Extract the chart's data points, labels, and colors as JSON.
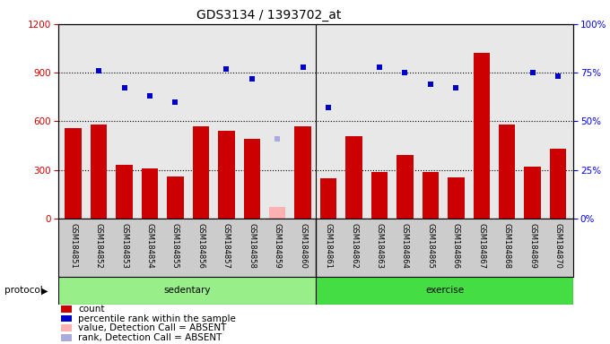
{
  "title": "GDS3134 / 1393702_at",
  "samples": [
    "GSM184851",
    "GSM184852",
    "GSM184853",
    "GSM184854",
    "GSM184855",
    "GSM184856",
    "GSM184857",
    "GSM184858",
    "GSM184859",
    "GSM184860",
    "GSM184861",
    "GSM184862",
    "GSM184863",
    "GSM184864",
    "GSM184865",
    "GSM184866",
    "GSM184867",
    "GSM184868",
    "GSM184869",
    "GSM184870"
  ],
  "count_values": [
    555,
    580,
    330,
    310,
    260,
    570,
    540,
    490,
    null,
    570,
    250,
    510,
    285,
    390,
    285,
    255,
    1020,
    580,
    320,
    430
  ],
  "absent_count_values": [
    null,
    null,
    null,
    null,
    null,
    null,
    null,
    null,
    70,
    null,
    null,
    null,
    null,
    null,
    null,
    null,
    null,
    null,
    null,
    null
  ],
  "rank_values_pct": [
    null,
    76,
    67,
    63,
    60,
    null,
    77,
    72,
    null,
    78,
    57,
    null,
    78,
    75,
    69,
    67,
    null,
    null,
    75,
    73
  ],
  "absent_rank_pct": [
    null,
    null,
    null,
    null,
    null,
    null,
    null,
    null,
    41,
    null,
    null,
    null,
    null,
    null,
    null,
    null,
    null,
    null,
    null,
    null
  ],
  "sedentary_count": 10,
  "exercise_count": 10,
  "ylim_left": [
    0,
    1200
  ],
  "ylim_right": [
    0,
    100
  ],
  "yticks_left": [
    0,
    300,
    600,
    900,
    1200
  ],
  "yticks_right": [
    0,
    25,
    50,
    75,
    100
  ],
  "ytick_labels_right": [
    "0%",
    "25%",
    "50%",
    "75%",
    "100%"
  ],
  "plot_bg_color": "#e8e8e8",
  "sedentary_color": "#98ee88",
  "exercise_color": "#44dd44",
  "legend_items": [
    {
      "label": "count",
      "color": "#cc0000"
    },
    {
      "label": "percentile rank within the sample",
      "color": "#0000cc"
    },
    {
      "label": "value, Detection Call = ABSENT",
      "color": "#ffb0b0"
    },
    {
      "label": "rank, Detection Call = ABSENT",
      "color": "#aaaadd"
    }
  ]
}
